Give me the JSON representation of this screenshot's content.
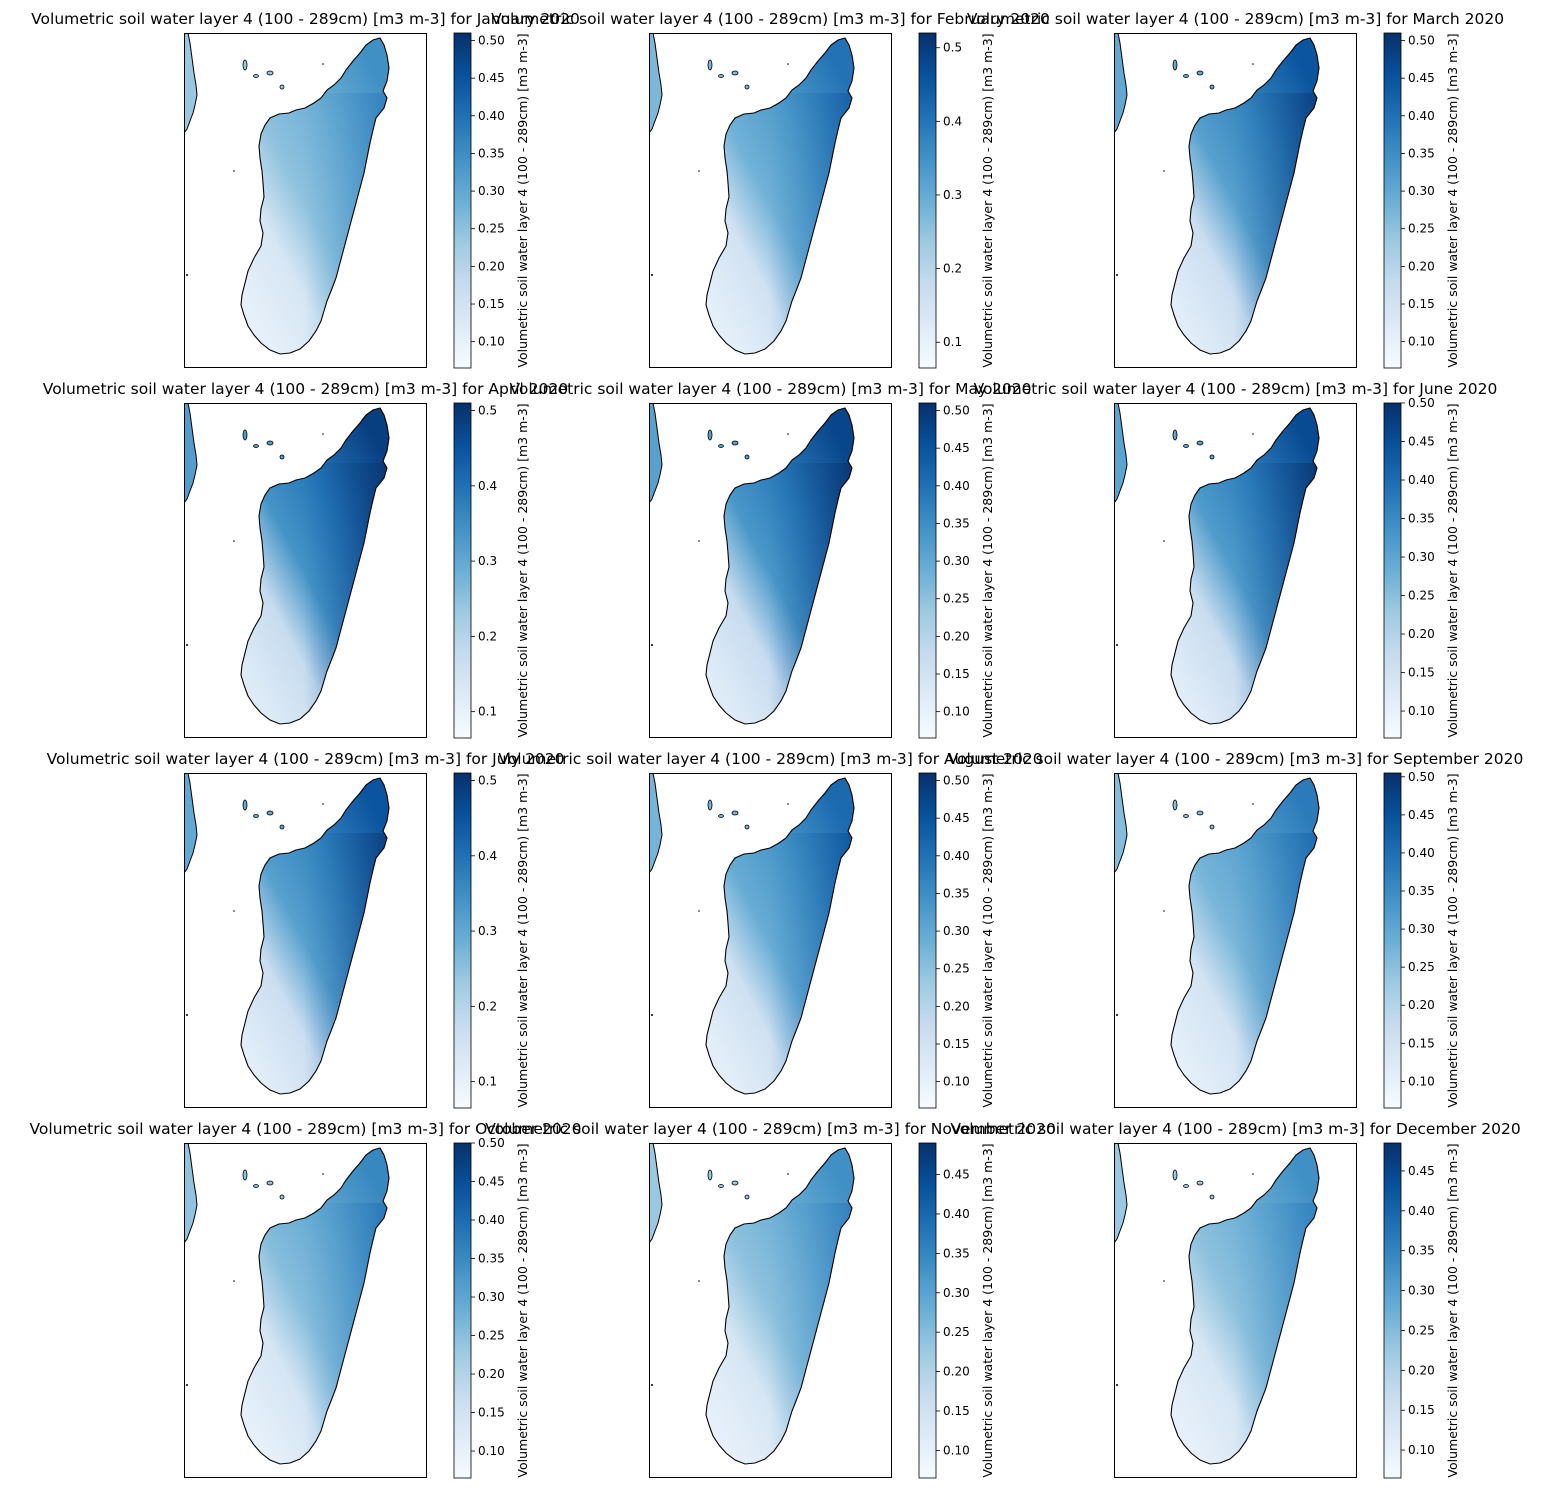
{
  "figure": {
    "colormap": "Blues",
    "colormap_stops": [
      "#f7fbff",
      "#deebf7",
      "#c6dbef",
      "#9ecae1",
      "#6baed6",
      "#4292c6",
      "#2171b5",
      "#08519c",
      "#08306b"
    ],
    "coastline_color": "#000000",
    "frame_color": "#000000",
    "colorbar_label": "Volumetric soil water layer 4 (100 - 289cm) [m3 m-3]",
    "panels": [
      {
        "title": "Volumetric soil water layer 4 (100 - 289cm) [m3 m-3] for January 2020",
        "cbar_range": [
          0.065,
          0.51
        ],
        "cbar_ticks": [
          "0.10",
          "0.15",
          "0.20",
          "0.25",
          "0.30",
          "0.35",
          "0.40",
          "0.45",
          "0.50"
        ],
        "cbar_tick_values": [
          0.1,
          0.15,
          0.2,
          0.25,
          0.3,
          0.35,
          0.4,
          0.45,
          0.5
        ],
        "wetness": 0.55
      },
      {
        "title": "Volumetric soil water layer 4 (100 - 289cm) [m3 m-3] for February 2020",
        "cbar_range": [
          0.065,
          0.52
        ],
        "cbar_ticks": [
          "0.1",
          "0.2",
          "0.3",
          "0.4",
          "0.5"
        ],
        "cbar_tick_values": [
          0.1,
          0.2,
          0.3,
          0.4,
          0.5
        ],
        "wetness": 0.65
      },
      {
        "title": "Volumetric soil water layer 4 (100 - 289cm) [m3 m-3] for March 2020",
        "cbar_range": [
          0.065,
          0.51
        ],
        "cbar_ticks": [
          "0.10",
          "0.15",
          "0.20",
          "0.25",
          "0.30",
          "0.35",
          "0.40",
          "0.45",
          "0.50"
        ],
        "cbar_tick_values": [
          0.1,
          0.15,
          0.2,
          0.25,
          0.3,
          0.35,
          0.4,
          0.45,
          0.5
        ],
        "wetness": 0.75
      },
      {
        "title": "Volumetric soil water layer 4 (100 - 289cm) [m3 m-3] for April 2020",
        "cbar_range": [
          0.065,
          0.51
        ],
        "cbar_ticks": [
          "0.1",
          "0.2",
          "0.3",
          "0.4",
          "0.5"
        ],
        "cbar_tick_values": [
          0.1,
          0.2,
          0.3,
          0.4,
          0.5
        ],
        "wetness": 0.82
      },
      {
        "title": "Volumetric soil water layer 4 (100 - 289cm) [m3 m-3] for May 2020",
        "cbar_range": [
          0.065,
          0.51
        ],
        "cbar_ticks": [
          "0.10",
          "0.15",
          "0.20",
          "0.25",
          "0.30",
          "0.35",
          "0.40",
          "0.45",
          "0.50"
        ],
        "cbar_tick_values": [
          0.1,
          0.15,
          0.2,
          0.25,
          0.3,
          0.35,
          0.4,
          0.45,
          0.5
        ],
        "wetness": 0.8
      },
      {
        "title": "Volumetric soil water layer 4 (100 - 289cm) [m3 m-3] for June 2020",
        "cbar_range": [
          0.065,
          0.5
        ],
        "cbar_ticks": [
          "0.10",
          "0.15",
          "0.20",
          "0.25",
          "0.30",
          "0.35",
          "0.40",
          "0.45",
          "0.50"
        ],
        "cbar_tick_values": [
          0.1,
          0.15,
          0.2,
          0.25,
          0.3,
          0.35,
          0.4,
          0.45,
          0.5
        ],
        "wetness": 0.78
      },
      {
        "title": "Volumetric soil water layer 4 (100 - 289cm) [m3 m-3] for July 2020",
        "cbar_range": [
          0.065,
          0.51
        ],
        "cbar_ticks": [
          "0.1",
          "0.2",
          "0.3",
          "0.4",
          "0.5"
        ],
        "cbar_tick_values": [
          0.1,
          0.2,
          0.3,
          0.4,
          0.5
        ],
        "wetness": 0.75
      },
      {
        "title": "Volumetric soil water layer 4 (100 - 289cm) [m3 m-3] for August 2020",
        "cbar_range": [
          0.065,
          0.51
        ],
        "cbar_ticks": [
          "0.10",
          "0.15",
          "0.20",
          "0.25",
          "0.30",
          "0.35",
          "0.40",
          "0.45",
          "0.50"
        ],
        "cbar_tick_values": [
          0.1,
          0.15,
          0.2,
          0.25,
          0.3,
          0.35,
          0.4,
          0.45,
          0.5
        ],
        "wetness": 0.68
      },
      {
        "title": "Volumetric soil water layer 4 (100 - 289cm) [m3 m-3] for September 2020",
        "cbar_range": [
          0.065,
          0.505
        ],
        "cbar_ticks": [
          "0.10",
          "0.15",
          "0.20",
          "0.25",
          "0.30",
          "0.35",
          "0.40",
          "0.45",
          "0.50"
        ],
        "cbar_tick_values": [
          0.1,
          0.15,
          0.2,
          0.25,
          0.3,
          0.35,
          0.4,
          0.45,
          0.5
        ],
        "wetness": 0.62
      },
      {
        "title": "Volumetric soil water layer 4 (100 - 289cm) [m3 m-3] for October 2020",
        "cbar_range": [
          0.065,
          0.5
        ],
        "cbar_ticks": [
          "0.10",
          "0.15",
          "0.20",
          "0.25",
          "0.30",
          "0.35",
          "0.40",
          "0.45",
          "0.50"
        ],
        "cbar_tick_values": [
          0.1,
          0.15,
          0.2,
          0.25,
          0.3,
          0.35,
          0.4,
          0.45,
          0.5
        ],
        "wetness": 0.58
      },
      {
        "title": "Volumetric soil water layer 4 (100 - 289cm) [m3 m-3] for November 2020",
        "cbar_range": [
          0.065,
          0.49
        ],
        "cbar_ticks": [
          "0.10",
          "0.15",
          "0.20",
          "0.25",
          "0.30",
          "0.35",
          "0.40",
          "0.45"
        ],
        "cbar_tick_values": [
          0.1,
          0.15,
          0.2,
          0.25,
          0.3,
          0.35,
          0.4,
          0.45
        ],
        "wetness": 0.55
      },
      {
        "title": "Volumetric soil water layer 4 (100 - 289cm) [m3 m-3] for December 2020",
        "cbar_range": [
          0.065,
          0.485
        ],
        "cbar_ticks": [
          "0.10",
          "0.15",
          "0.20",
          "0.25",
          "0.30",
          "0.35",
          "0.40",
          "0.45"
        ],
        "cbar_tick_values": [
          0.1,
          0.15,
          0.2,
          0.25,
          0.3,
          0.35,
          0.4,
          0.45
        ],
        "wetness": 0.55
      }
    ]
  }
}
